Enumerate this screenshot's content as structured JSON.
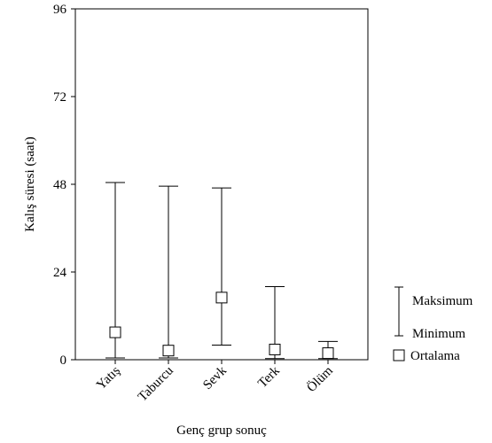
{
  "chart_data": {
    "type": "range",
    "xlabel": "Genç grup sonuç",
    "ylabel": "Kalış süresi (saat)",
    "ylim": [
      0,
      96
    ],
    "yticks": [
      0,
      24,
      48,
      72,
      96
    ],
    "categories": [
      "Yatış",
      "Taburcu",
      "Sevk",
      "Terk",
      "Ölüm"
    ],
    "max": [
      48.5,
      47.5,
      47,
      20,
      5
    ],
    "min": [
      0.5,
      0.5,
      4,
      0.3,
      0.3
    ],
    "mean": [
      7.5,
      2.5,
      17,
      2.8,
      1.8
    ],
    "legend": {
      "position": "right",
      "max_label": "Maksimum",
      "min_label": "Minimum",
      "mean_label": "Ortalama"
    }
  }
}
